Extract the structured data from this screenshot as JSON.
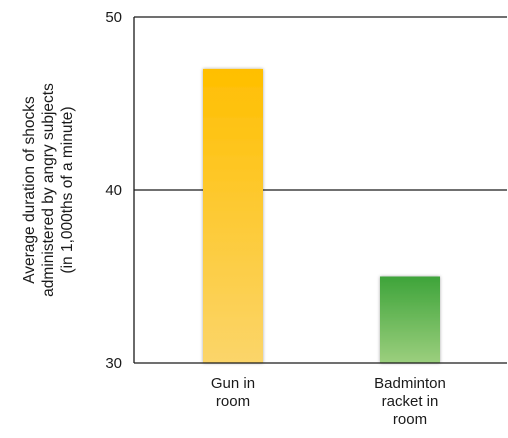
{
  "chart_data": {
    "type": "bar",
    "categories": [
      [
        "Gun in",
        "room"
      ],
      [
        "Badminton",
        "racket in",
        "room"
      ]
    ],
    "values": [
      47,
      35
    ],
    "ylabel": [
      "Average duration of shocks",
      "administered by angry subjects",
      "(in 1,000ths of a minute)"
    ],
    "ylim": [
      30,
      50
    ],
    "yticks": [
      30,
      40,
      50
    ],
    "grid": true,
    "colors": {
      "bar1_top": "#ffbf00",
      "bar1_bottom": "#fbd56a",
      "bar2_top": "#3ea43a",
      "bar2_bottom": "#9ccf7e",
      "axis": "#1a1a1a"
    }
  }
}
